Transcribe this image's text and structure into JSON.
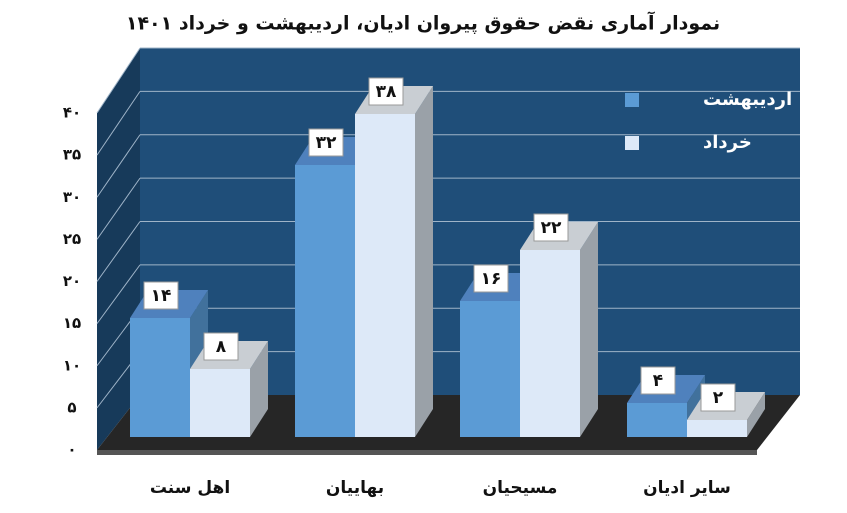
{
  "chart_data": {
    "type": "bar3d",
    "title": "نمودار آماری نقض حقوق پیروان ادیان، اردیبهشت و خرداد ۱۴۰۱",
    "categories": [
      "اهل سنت",
      "بهاییان",
      "مسیحیان",
      "سایر ادیان"
    ],
    "series": [
      {
        "name": "اردیبهشت",
        "color": "#5b9bd5",
        "values": [
          14,
          32,
          16,
          4
        ],
        "value_labels": [
          "۱۴",
          "۳۲",
          "۱۶",
          "۴"
        ]
      },
      {
        "name": "خرداد",
        "color": "#dde9f8",
        "values": [
          8,
          38,
          22,
          2
        ],
        "value_labels": [
          "۸",
          "۳۸",
          "۲۲",
          "۲"
        ]
      }
    ],
    "ylim": [
      0,
      40
    ],
    "yticks": [
      {
        "value": 0,
        "label": "۰"
      },
      {
        "value": 5,
        "label": "۵"
      },
      {
        "value": 10,
        "label": "۱۰"
      },
      {
        "value": 15,
        "label": "۱۵"
      },
      {
        "value": 20,
        "label": "۲۰"
      },
      {
        "value": 25,
        "label": "۲۵"
      },
      {
        "value": 30,
        "label": "۳۰"
      },
      {
        "value": 35,
        "label": "۳۵"
      },
      {
        "value": 40,
        "label": "۴۰"
      }
    ],
    "grid": true,
    "legend": "top-right"
  }
}
